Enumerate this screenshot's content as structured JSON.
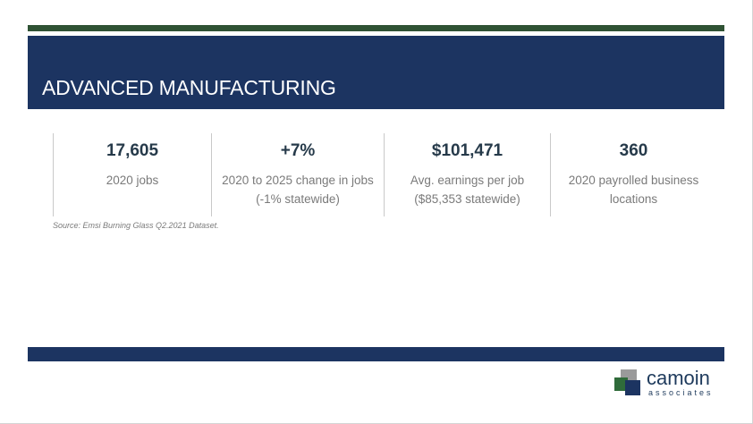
{
  "slide": {
    "title": "ADVANCED MANUFACTURING",
    "stats": [
      {
        "value": "17,605",
        "label": "2020 jobs"
      },
      {
        "value": "+7%",
        "label": "2020 to 2025 change in jobs (-1% statewide)"
      },
      {
        "value": "$101,471",
        "label": "Avg. earnings per job ($85,353 statewide)"
      },
      {
        "value": "360",
        "label": "2020 payrolled business locations"
      }
    ],
    "source": "Source: Emsi Burning Glass Q2.2021 Dataset."
  },
  "logo": {
    "word": "camoin",
    "sub": "associates"
  },
  "colors": {
    "navy": "#1c3461",
    "green": "#2f5234",
    "stat_value": "#263a4a",
    "stat_label": "#7a7a7a"
  }
}
